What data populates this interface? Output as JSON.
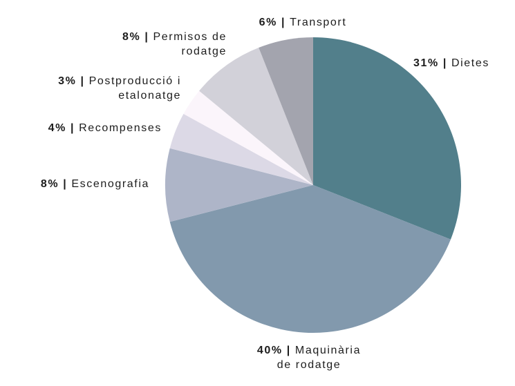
{
  "chart_data": {
    "type": "pie",
    "start_angle_deg": 0,
    "direction": "clockwise",
    "slices": [
      {
        "label": "Dietes",
        "value": 31,
        "display": "31%",
        "lines": [
          "Dietes"
        ],
        "color": "#527f8b"
      },
      {
        "label": "Maquinària de rodatge",
        "value": 40,
        "display": "40%",
        "lines": [
          "Maquinària",
          "de rodatge"
        ],
        "color": "#8299ad"
      },
      {
        "label": "Escenografia",
        "value": 8,
        "display": "8%",
        "lines": [
          "Escenografia"
        ],
        "color": "#aeb5c8"
      },
      {
        "label": "Recompenses",
        "value": 4,
        "display": "4%",
        "lines": [
          "Recompenses"
        ],
        "color": "#dcd9e6"
      },
      {
        "label": "Postproducció i etalonatge",
        "value": 3,
        "display": "3%",
        "lines": [
          "Postproducció i",
          "etalonatge"
        ],
        "color": "#fbf5fb"
      },
      {
        "label": "Permisos de rodatge",
        "value": 8,
        "display": "8%",
        "lines": [
          "Permisos de",
          "rodatge"
        ],
        "color": "#d2d1d9"
      },
      {
        "label": "Transport",
        "value": 6,
        "display": "6%",
        "lines": [
          "Transport"
        ],
        "color": "#a3a4ae"
      }
    ]
  }
}
